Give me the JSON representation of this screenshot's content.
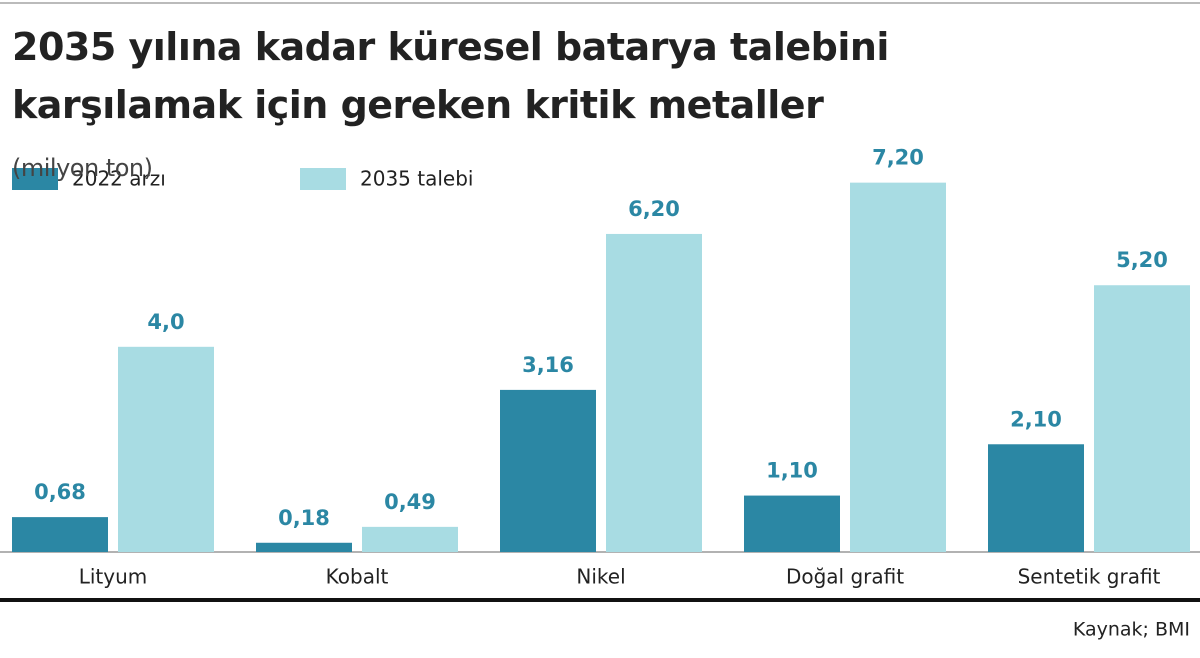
{
  "chart_data": {
    "type": "bar",
    "title": "2035 yılına kadar küresel batarya talebini karşılamak için gereken kritik metaller",
    "subtitle": "(milyon ton)",
    "categories": [
      "Lityum",
      "Kobalt",
      "Nikel",
      "Doğal grafit",
      "Sentetik grafit"
    ],
    "series": [
      {
        "name": "2022 arzı",
        "color": "#2b87a4",
        "values": [
          0.68,
          0.18,
          3.16,
          1.1,
          2.1
        ],
        "value_labels": [
          "0,68",
          "0,18",
          "3,16",
          "1,10",
          "2,10"
        ]
      },
      {
        "name": "2035 talebi",
        "color": "#a8dce3",
        "values": [
          4.0,
          0.49,
          6.2,
          7.2,
          5.2
        ],
        "value_labels": [
          "4,0",
          "0,49",
          "6,20",
          "7,20",
          "5,20"
        ]
      }
    ],
    "source": "Kaynak; BMI"
  }
}
